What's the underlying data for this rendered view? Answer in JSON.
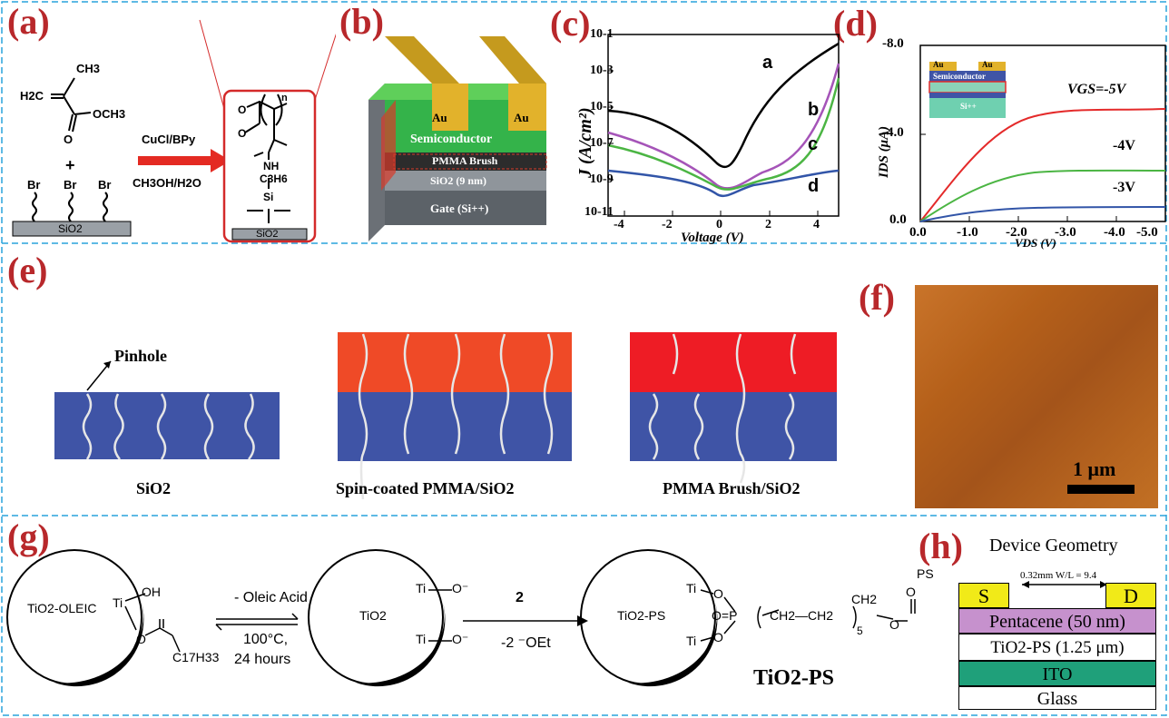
{
  "panels": {
    "a": "(a)",
    "b": "(b)",
    "c": "(c)",
    "d": "(d)",
    "e": "(e)",
    "f": "(f)",
    "g": "(g)",
    "h": "(h)"
  },
  "colors": {
    "panel_label": "#b8282b",
    "dashed_border": "#29a3dc",
    "substrate_blue": "#3f54a6",
    "spin_coat_orange": "#ef4a27",
    "brush_red": "#ee1c25",
    "afm_orange": "#b8631a",
    "device_green": "#1fa07a",
    "device_yellow": "#f1ea18",
    "device_purple": "#c691cd"
  },
  "a": {
    "ch3_top": "CH3",
    "h2c": "H2C",
    "och3": "OCH3",
    "o": "O",
    "plus": "+",
    "br1": "Br",
    "br2": "Br",
    "br3": "Br",
    "sio2": "SiO2",
    "reagent_top": "CuCl/BPy",
    "reagent_bottom": "CH3OH/H2O",
    "prod_o": "O",
    "prod_n": "n",
    "prod_o2": "O",
    "prod_nh": "NH",
    "prod_c3h6": "C3H6",
    "prod_si": "Si",
    "prod_sio2": "SiO2"
  },
  "b": {
    "au_left": "Au",
    "au_right": "Au",
    "semiconductor": "Semiconductor",
    "pmma": "PMMA Brush",
    "sio2": "SiO2 (9 nm)",
    "gate": "Gate (Si++)"
  },
  "c": {
    "ylabel": "J (A/cm²)",
    "xlabel": "Voltage (V)",
    "yticks": [
      "10-1",
      "10-3",
      "10-5",
      "10-7",
      "10-9",
      "10-11"
    ],
    "xticks": [
      "-4",
      "-2",
      "0",
      "2",
      "4"
    ],
    "curve_labels": [
      "a",
      "b",
      "c",
      "d"
    ]
  },
  "d": {
    "ylabel": "IDS (μA)",
    "xlabel": "VDS (V)",
    "yticks": [
      "-8.0",
      "-4.0",
      "0.0"
    ],
    "xticks": [
      "0.0",
      "-1.0",
      "-2.0",
      "-3.0",
      "-4.0",
      "-5.0"
    ],
    "inset_au_left": "Au",
    "inset_au_right": "Au",
    "inset_semiconductor": "Semiconductor",
    "inset_si": "Si++",
    "vgs_labels": [
      "VGS=-5V",
      "-4V",
      "-3V"
    ]
  },
  "e": {
    "pinhole": "Pinhole",
    "captions": [
      "SiO2",
      "Spin-coated PMMA/SiO2",
      "PMMA Brush/SiO2"
    ]
  },
  "f": {
    "scale": "1 μm"
  },
  "g": {
    "np1_label": "TiO2-OLEIC",
    "np1_oh": "OH",
    "np1_ti": "Ti",
    "np1_o": "O",
    "np1_chain": "C17H33",
    "arrow1_top": "- Oleic Acid",
    "arrow1_mid": "100°C,",
    "arrow1_bottom": "24 hours",
    "np2_label": "TiO2",
    "np2_ti1": "Ti",
    "np2_o1": "O⁻",
    "np2_ti2": "Ti",
    "np2_o2": "O⁻",
    "arrow2_top": "2",
    "arrow2_bottom": "-2 ⁻OEt",
    "np3_label": "TiO2-PS",
    "np3_ti1": "Ti",
    "np3_ti2": "Ti",
    "np3_o1": "O",
    "np3_o2": "O",
    "np3_op": "O=P",
    "np3_chain": "CH2—CH2",
    "np3_sub": "5",
    "np3_ch2": "CH2",
    "np3_o3": "O",
    "np3_o4": "O",
    "np3_ps": "PS",
    "product": "TiO2-PS"
  },
  "h": {
    "title": "Device Geometry",
    "dims": "0.32mm W/L = 9.4",
    "s": "S",
    "d": "D",
    "pentacene": "Pentacene (50 nm)",
    "tio2ps": "TiO2-PS (1.25 μm)",
    "ito": "ITO",
    "glass": "Glass"
  }
}
